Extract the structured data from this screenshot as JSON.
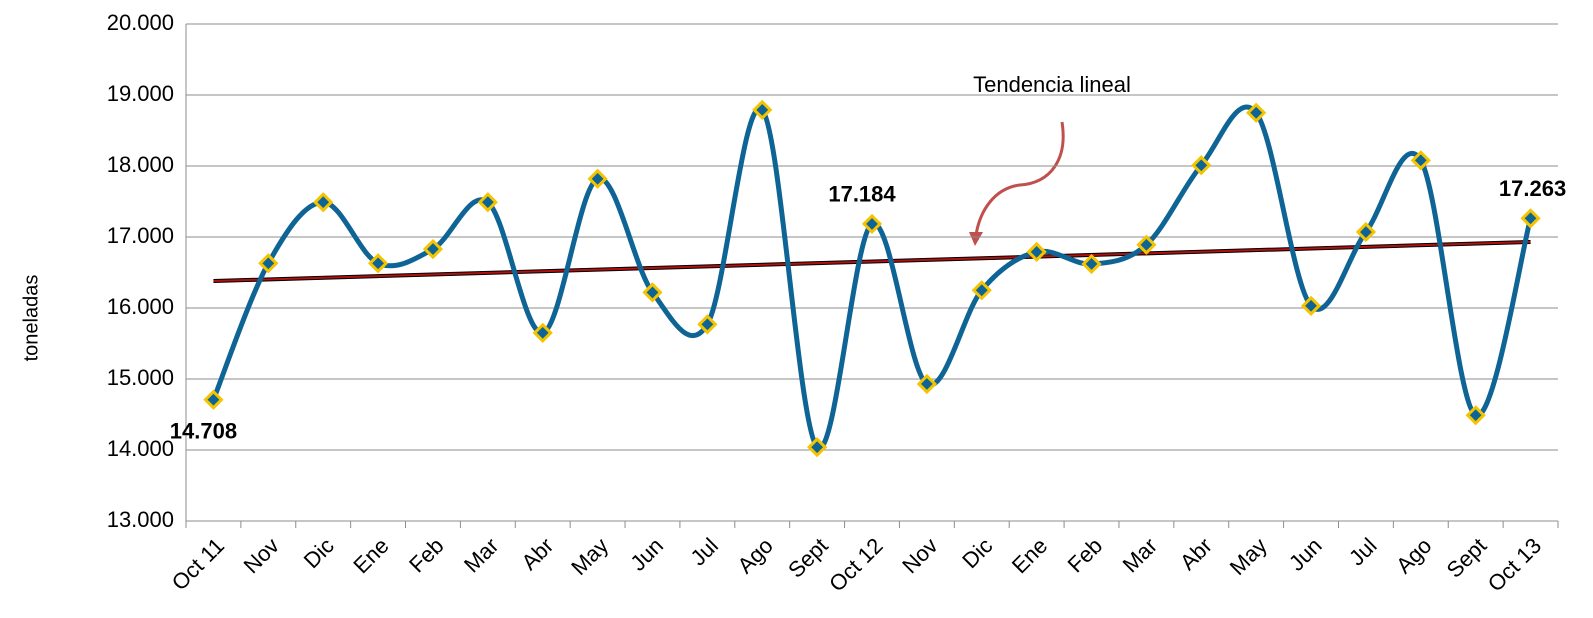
{
  "chart_data": {
    "type": "line",
    "y_label": "toneladas",
    "annotation": "Tendencia lineal",
    "categories": [
      "Oct 11",
      "Nov",
      "Dic",
      "Ene",
      "Feb",
      "Mar",
      "Abr",
      "May",
      "Jun",
      "Jul",
      "Ago",
      "Sept",
      "Oct 12",
      "Nov",
      "Dic",
      "Ene",
      "Feb",
      "Mar",
      "Abr",
      "May",
      "Jun",
      "Jul",
      "Ago",
      "Sept",
      "Oct 13"
    ],
    "series": [
      {
        "color": "#0f6496",
        "marker_color": "#f5c400",
        "values": [
          14708,
          16630,
          17490,
          16630,
          16830,
          17490,
          15650,
          17820,
          16220,
          15770,
          18790,
          14040,
          17184,
          14930,
          16250,
          16790,
          16620,
          16890,
          18010,
          18750,
          16030,
          17070,
          18080,
          14490,
          17263
        ],
        "value_labels": [
          "14.708",
          null,
          null,
          null,
          null,
          null,
          null,
          null,
          null,
          null,
          null,
          null,
          "17.184",
          null,
          null,
          null,
          null,
          null,
          null,
          null,
          null,
          null,
          null,
          null,
          "17.263"
        ]
      }
    ],
    "trendline": {
      "color": "#b01010",
      "values": [
        16380,
        16930
      ]
    },
    "ylim": [
      13000,
      20000
    ],
    "yticks": [
      {
        "value": 13000,
        "label": "13.000"
      },
      {
        "value": 14000,
        "label": "14.000"
      },
      {
        "value": 15000,
        "label": "15.000"
      },
      {
        "value": 16000,
        "label": "16.000"
      },
      {
        "value": 17000,
        "label": "17.000"
      },
      {
        "value": 18000,
        "label": "18.000"
      },
      {
        "value": 19000,
        "label": "19.000"
      },
      {
        "value": 20000,
        "label": "20.000"
      }
    ],
    "grid": true
  }
}
